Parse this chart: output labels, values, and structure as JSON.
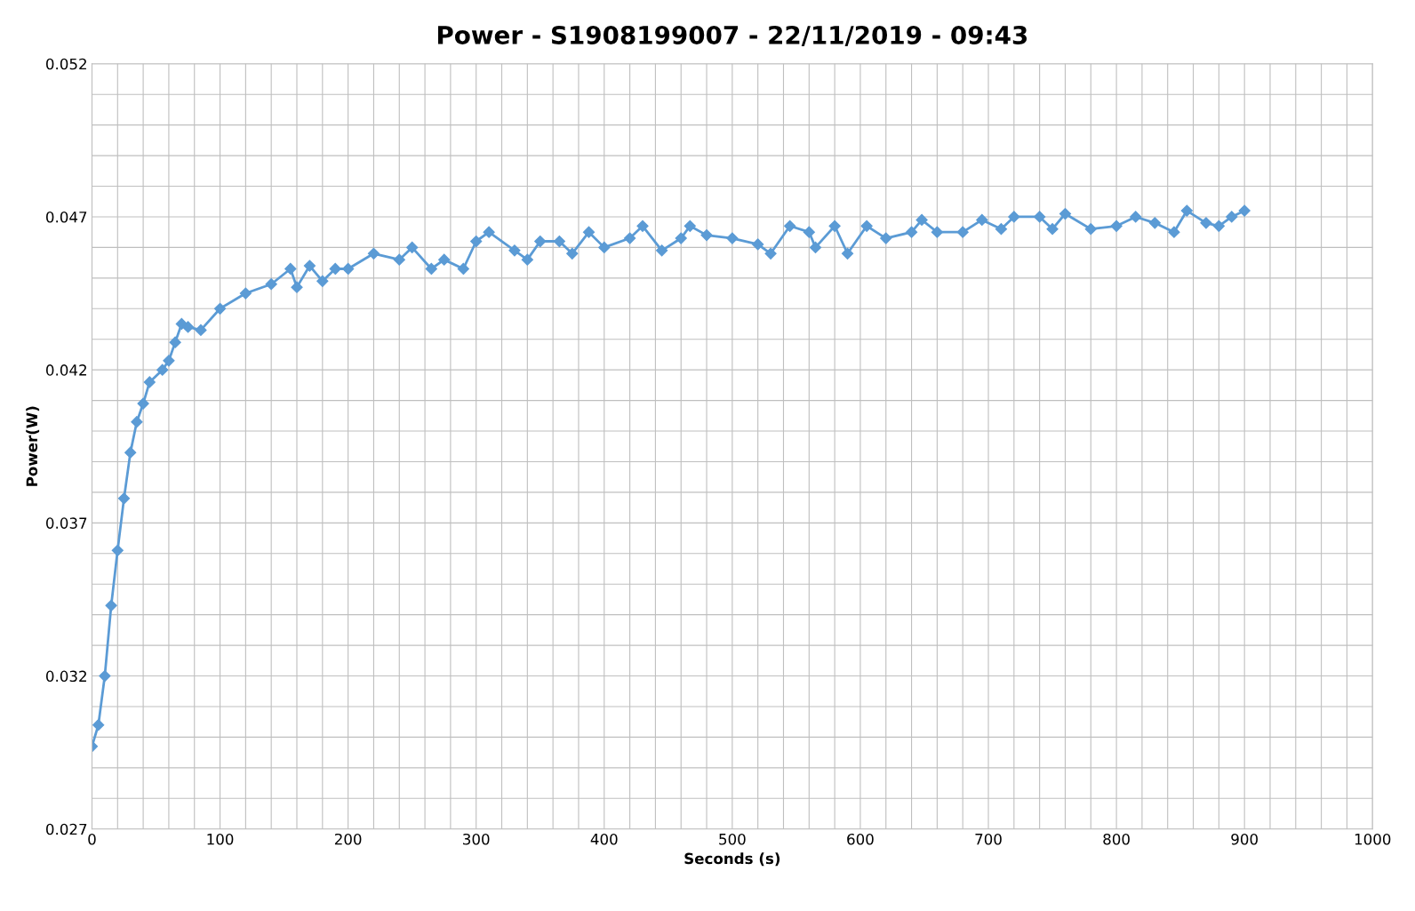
{
  "chart_data": {
    "type": "line",
    "title": "Power - S1908199007 - 22/11/2019 - 09:43",
    "xlabel": "Seconds (s)",
    "ylabel": "Power(W)",
    "xlim": [
      0,
      1000
    ],
    "ylim": [
      0.027,
      0.052
    ],
    "xticks": [
      0,
      {
        "value": 20,
        "label": null
      },
      {
        "value": 40,
        "label": null
      },
      {
        "value": 60,
        "label": null
      },
      {
        "value": 80,
        "label": null
      },
      100,
      {
        "value": 120,
        "label": null
      },
      {
        "value": 140,
        "label": null
      },
      {
        "value": 160,
        "label": null
      },
      {
        "value": 180,
        "label": null
      },
      200,
      {
        "value": 220,
        "label": null
      },
      {
        "value": 240,
        "label": null
      },
      {
        "value": 260,
        "label": null
      },
      {
        "value": 280,
        "label": null
      },
      300,
      {
        "value": 320,
        "label": null
      },
      {
        "value": 340,
        "label": null
      },
      {
        "value": 360,
        "label": null
      },
      {
        "value": 380,
        "label": null
      },
      400,
      {
        "value": 420,
        "label": null
      },
      {
        "value": 440,
        "label": null
      },
      {
        "value": 460,
        "label": null
      },
      {
        "value": 480,
        "label": null
      },
      500,
      {
        "value": 520,
        "label": null
      },
      {
        "value": 540,
        "label": null
      },
      {
        "value": 560,
        "label": null
      },
      {
        "value": 580,
        "label": null
      },
      600,
      {
        "value": 620,
        "label": null
      },
      {
        "value": 640,
        "label": null
      },
      {
        "value": 660,
        "label": null
      },
      {
        "value": 680,
        "label": null
      },
      700,
      {
        "value": 720,
        "label": null
      },
      {
        "value": 740,
        "label": null
      },
      {
        "value": 760,
        "label": null
      },
      {
        "value": 780,
        "label": null
      },
      800,
      {
        "value": 820,
        "label": null
      },
      {
        "value": 840,
        "label": null
      },
      {
        "value": 860,
        "label": null
      },
      {
        "value": 880,
        "label": null
      },
      900,
      {
        "value": 920,
        "label": null
      },
      {
        "value": 940,
        "label": null
      },
      {
        "value": 960,
        "label": null
      },
      {
        "value": 980,
        "label": null
      },
      1000
    ],
    "yticks": [
      0.027,
      {
        "value": 0.028,
        "label": null
      },
      {
        "value": 0.029,
        "label": null
      },
      {
        "value": 0.03,
        "label": null
      },
      {
        "value": 0.031,
        "label": null
      },
      0.032,
      {
        "value": 0.033,
        "label": null
      },
      {
        "value": 0.034,
        "label": null
      },
      {
        "value": 0.035,
        "label": null
      },
      {
        "value": 0.036,
        "label": null
      },
      0.037,
      {
        "value": 0.038,
        "label": null
      },
      {
        "value": 0.039,
        "label": null
      },
      {
        "value": 0.04,
        "label": null
      },
      {
        "value": 0.041,
        "label": null
      },
      0.042,
      {
        "value": 0.043,
        "label": null
      },
      {
        "value": 0.044,
        "label": null
      },
      {
        "value": 0.045,
        "label": null
      },
      {
        "value": 0.046,
        "label": null
      },
      0.047,
      {
        "value": 0.048,
        "label": null
      },
      {
        "value": 0.049,
        "label": null
      },
      {
        "value": 0.05,
        "label": null
      },
      {
        "value": 0.051,
        "label": null
      },
      0.052
    ],
    "grid": true,
    "marker": "diamond",
    "line_style": "solid",
    "series": [
      {
        "color": "#5b9bd5",
        "x": [
          0,
          5,
          10,
          15,
          20,
          25,
          30,
          35,
          40,
          45,
          55,
          60,
          65,
          70,
          75,
          85,
          100,
          120,
          140,
          155,
          160,
          170,
          180,
          190,
          200,
          220,
          240,
          250,
          265,
          275,
          290,
          300,
          310,
          330,
          340,
          350,
          365,
          375,
          388,
          400,
          420,
          430,
          445,
          460,
          467,
          480,
          500,
          520,
          530,
          545,
          560,
          565,
          580,
          590,
          605,
          620,
          640,
          648,
          660,
          680,
          695,
          710,
          720,
          740,
          750,
          760,
          780,
          800,
          815,
          830,
          845,
          855,
          870,
          880,
          890,
          900
        ],
        "values": [
          0.0297,
          0.0304,
          0.032,
          0.0343,
          0.0361,
          0.0378,
          0.0393,
          0.0403,
          0.0409,
          0.0416,
          0.042,
          0.0423,
          0.0429,
          0.0435,
          0.0434,
          0.0433,
          0.044,
          0.0445,
          0.0448,
          0.0453,
          0.0447,
          0.0454,
          0.0449,
          0.0453,
          0.0453,
          0.0458,
          0.0456,
          0.046,
          0.0453,
          0.0456,
          0.0453,
          0.0462,
          0.0465,
          0.0459,
          0.0456,
          0.0462,
          0.0462,
          0.0458,
          0.0465,
          0.046,
          0.0463,
          0.0467,
          0.0459,
          0.0463,
          0.0467,
          0.0464,
          0.0463,
          0.0461,
          0.0458,
          0.0467,
          0.0465,
          0.046,
          0.0467,
          0.0458,
          0.0467,
          0.0463,
          0.0465,
          0.0469,
          0.0465,
          0.0465,
          0.0469,
          0.0466,
          0.047,
          0.047,
          0.0466,
          0.0471,
          0.0466,
          0.0467,
          0.047,
          0.0468,
          0.0465,
          0.0472,
          0.0468,
          0.0467,
          0.047,
          0.0472
        ]
      }
    ]
  }
}
